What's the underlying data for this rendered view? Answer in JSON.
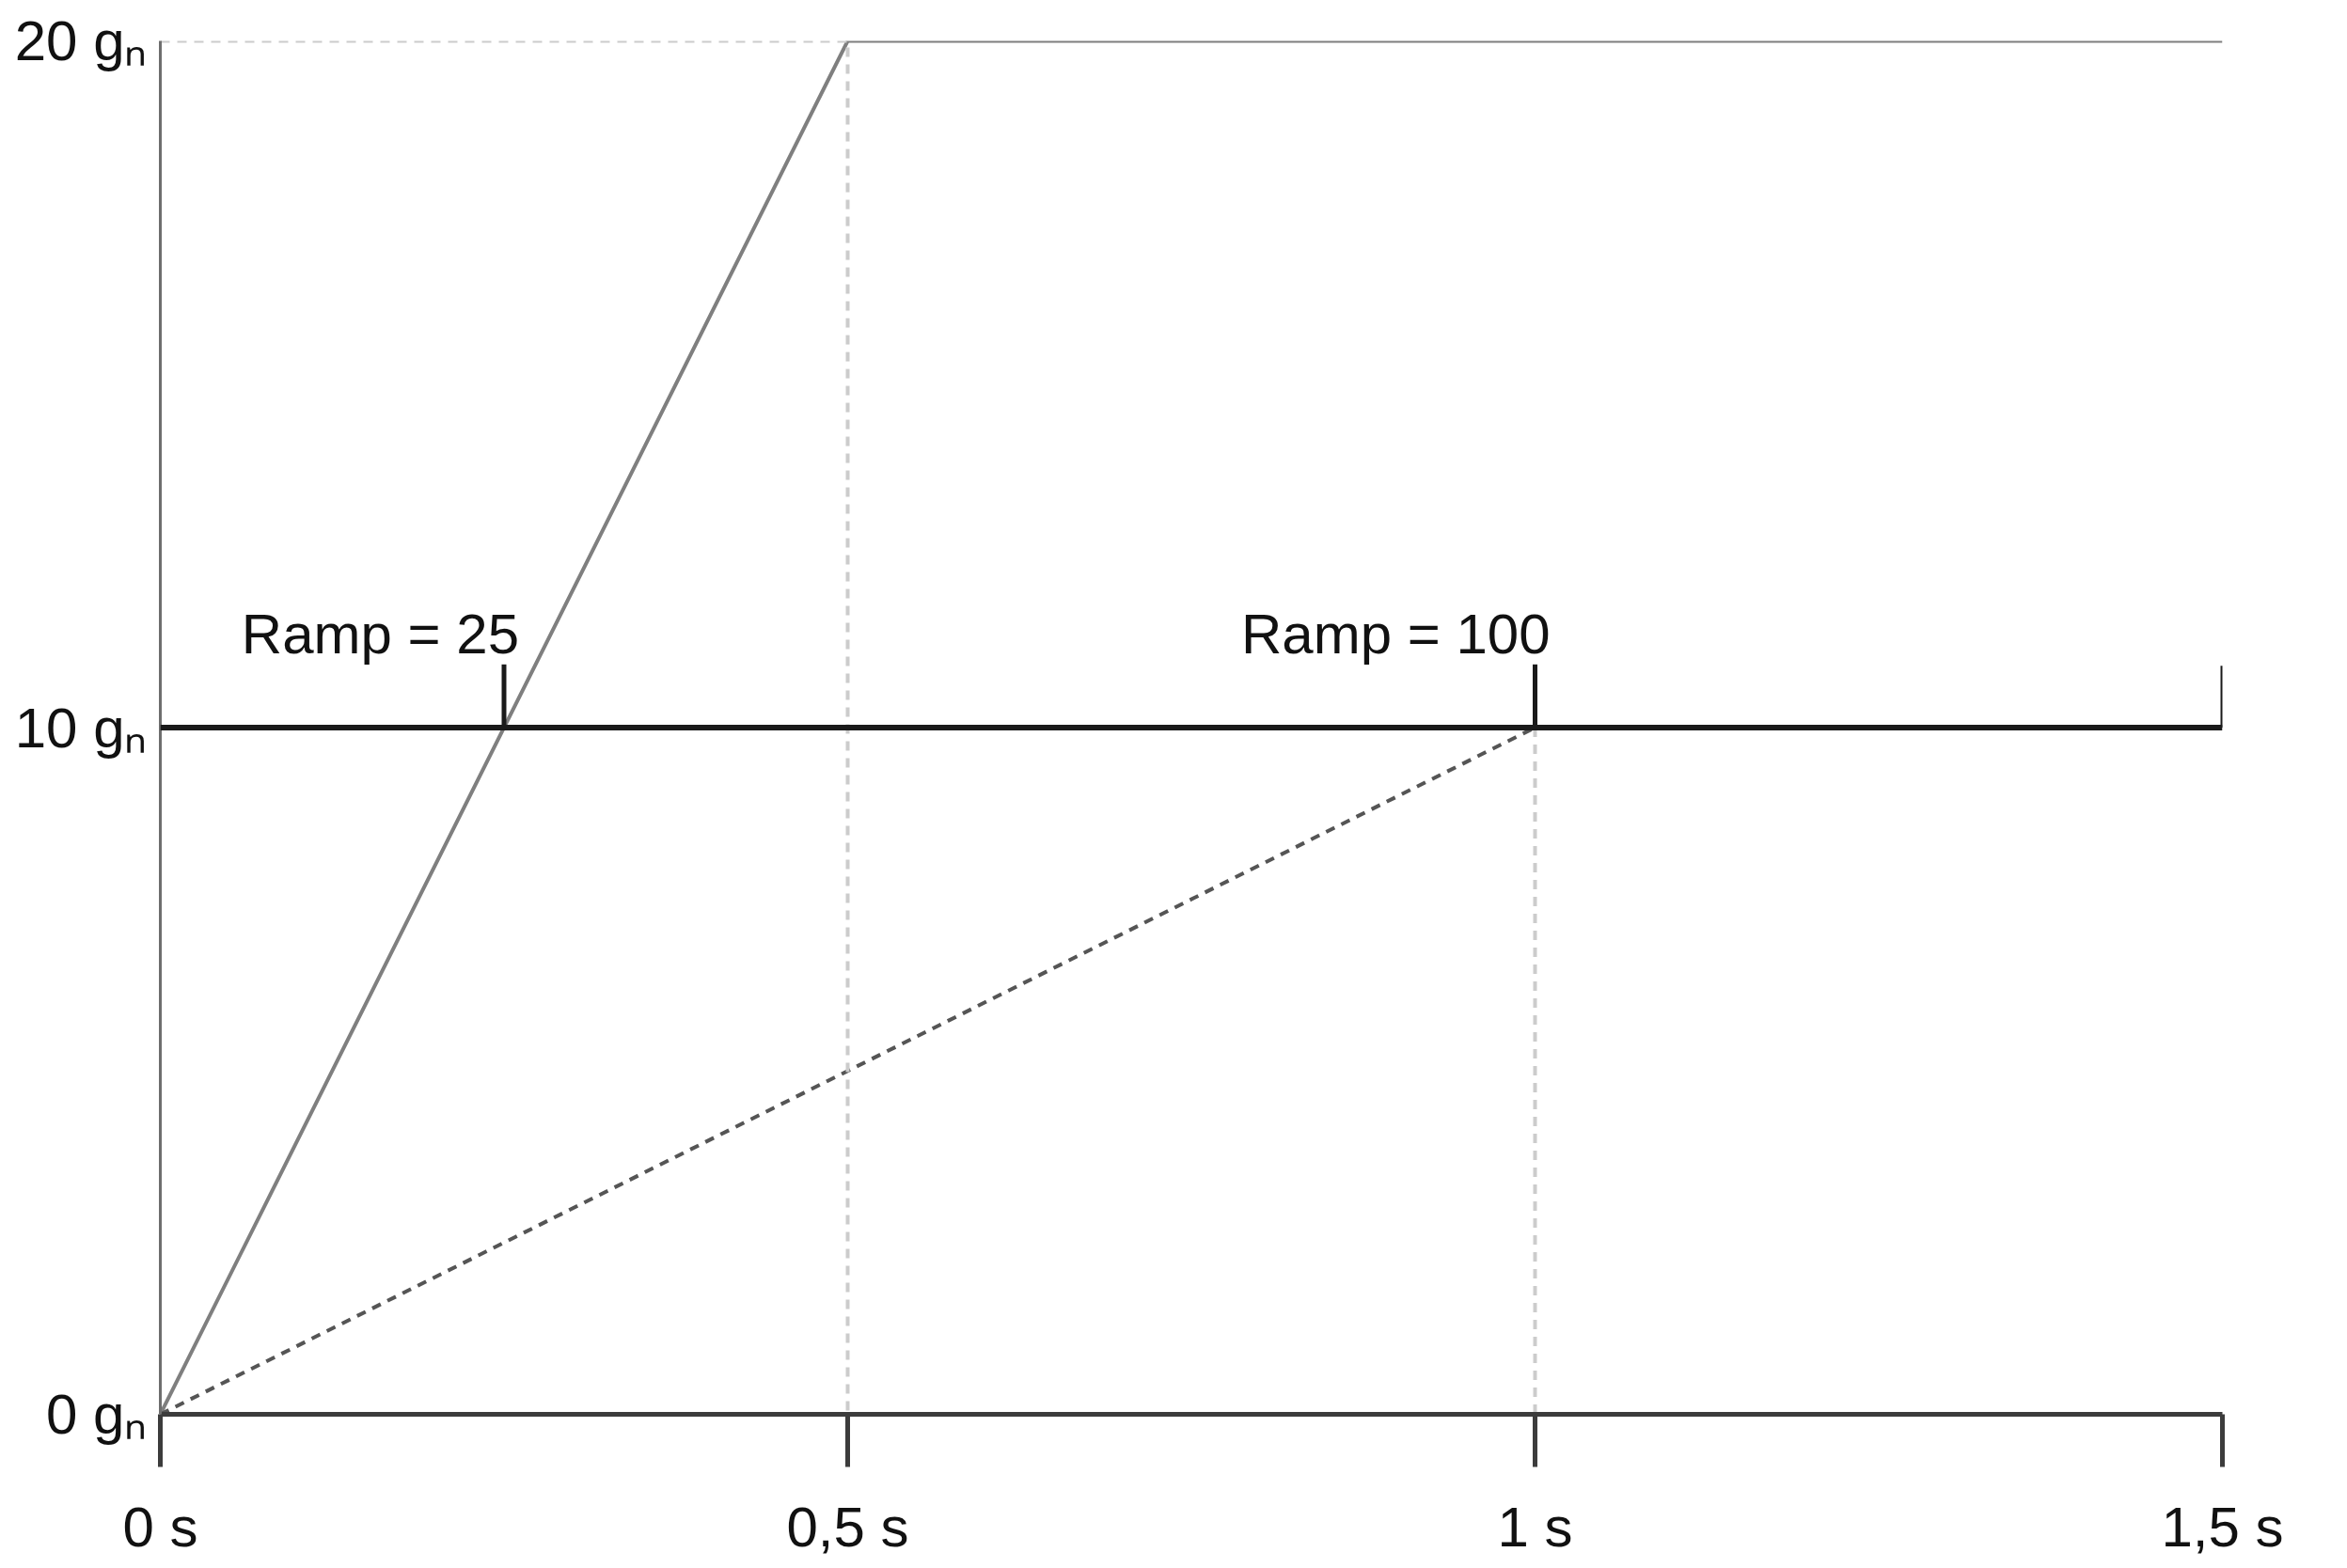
{
  "chart_data": {
    "type": "line",
    "xlim": [
      0,
      1.5
    ],
    "ylim": [
      0,
      20
    ],
    "xticks": [
      {
        "value": 0,
        "label": "0 s"
      },
      {
        "value": 0.5,
        "label": "0,5 s"
      },
      {
        "value": 1,
        "label": "1 s"
      },
      {
        "value": 1.5,
        "label": "1,5 s"
      }
    ],
    "yticks": [
      {
        "value": 0,
        "label": "0 gₙ"
      },
      {
        "value": 10,
        "label": "10 gₙ"
      },
      {
        "value": 20,
        "label": "20 gₙ"
      }
    ],
    "series": [
      {
        "x": [
          0,
          0.5,
          1.5
        ],
        "values": [
          0,
          20,
          20
        ],
        "color": "#7f7f7f",
        "line_style": "solid"
      },
      {
        "x": [
          0,
          1
        ],
        "values": [
          0,
          10
        ],
        "color": "#555555",
        "line_style": "dashed"
      },
      {
        "x": [
          0,
          0.5,
          0.5
        ],
        "values": [
          20,
          20,
          0
        ],
        "color": "#cccccc",
        "line_style": "dashed"
      },
      {
        "x": [
          1,
          1
        ],
        "values": [
          10,
          0
        ],
        "color": "#cccccc",
        "line_style": "dashed"
      },
      {
        "x": [
          1.5,
          1.5
        ],
        "values": [
          10,
          10.9
        ],
        "color": "#1a1a1a",
        "line_style": "solid"
      }
    ],
    "ref_lines": [
      {
        "axis": "y",
        "value": 10,
        "color": "#1a1a1a"
      }
    ],
    "annotations": [
      {
        "text": "Ramp = 25",
        "x": 0.25,
        "y": 10
      },
      {
        "text": "Ramp = 100",
        "x": 1,
        "y": 10
      }
    ],
    "grid": false
  }
}
